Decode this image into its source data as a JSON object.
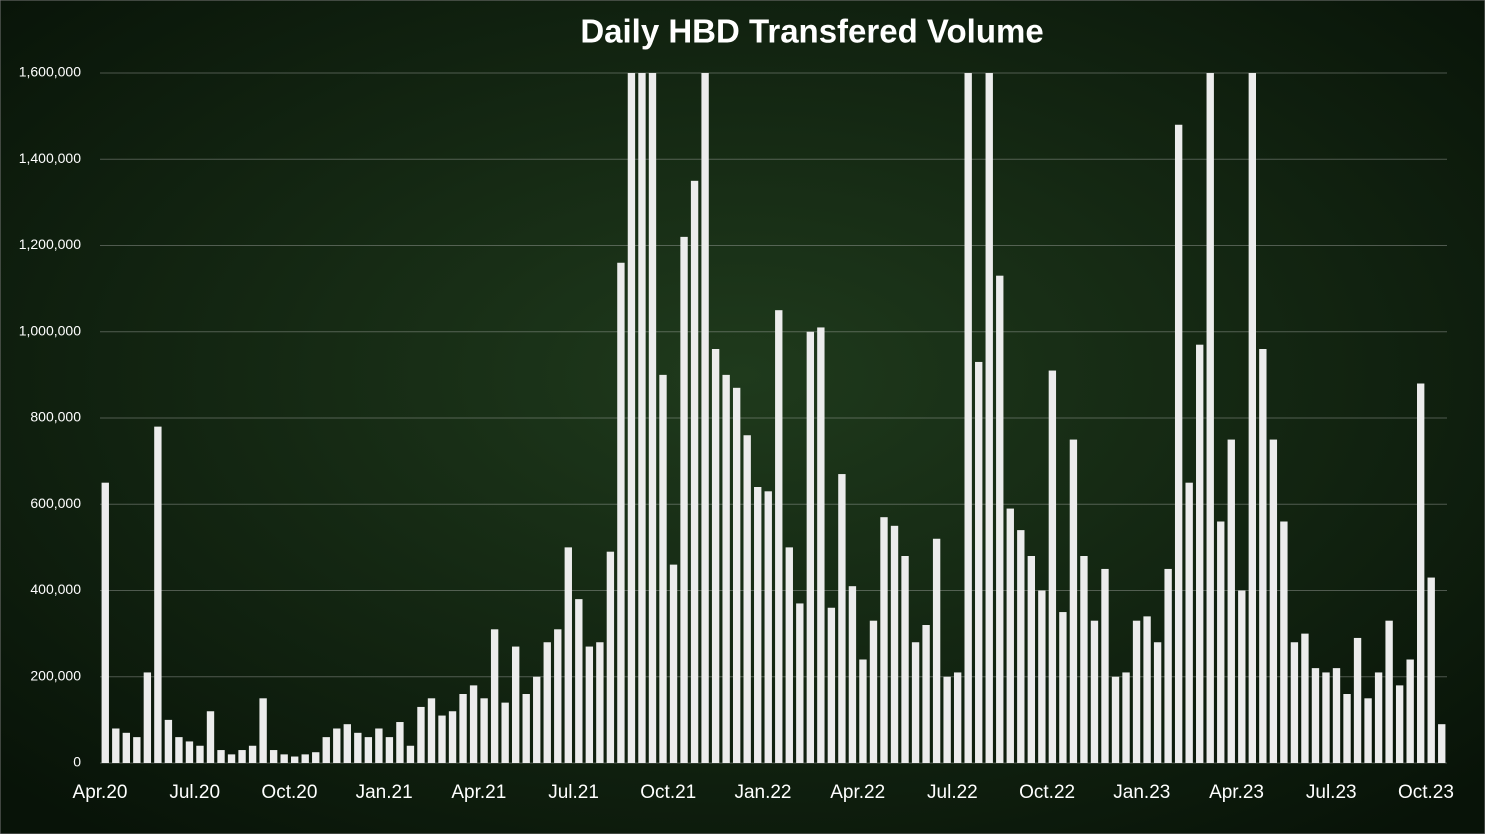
{
  "chart_data": {
    "type": "bar",
    "title": "Daily HBD Transfered Volume",
    "color": "#ececec",
    "grid": true,
    "categories": [
      "Apr.20",
      null,
      null,
      null,
      null,
      null,
      null,
      null,
      null,
      "Jul.20",
      null,
      null,
      null,
      null,
      null,
      null,
      null,
      null,
      "Oct.20",
      null,
      null,
      null,
      null,
      null,
      null,
      null,
      null,
      "Jan.21",
      null,
      null,
      null,
      null,
      null,
      null,
      null,
      null,
      "Apr.21",
      null,
      null,
      null,
      null,
      null,
      null,
      null,
      null,
      "Jul.21",
      null,
      null,
      null,
      null,
      null,
      null,
      null,
      null,
      "Oct.21",
      null,
      null,
      null,
      null,
      null,
      null,
      null,
      null,
      "Jan.22",
      null,
      null,
      null,
      null,
      null,
      null,
      null,
      null,
      "Apr.22",
      null,
      null,
      null,
      null,
      null,
      null,
      null,
      null,
      "Jul.22",
      null,
      null,
      null,
      null,
      null,
      null,
      null,
      null,
      "Oct.22",
      null,
      null,
      null,
      null,
      null,
      null,
      null,
      null,
      "Jan.23",
      null,
      null,
      null,
      null,
      null,
      null,
      null,
      null,
      "Apr.23",
      null,
      null,
      null,
      null,
      null,
      null,
      null,
      null,
      "Jul.23",
      null,
      null,
      null,
      null,
      null,
      null,
      null,
      null,
      "Oct.23",
      null
    ],
    "values": [
      650000,
      80000,
      70000,
      60000,
      210000,
      780000,
      100000,
      60000,
      50000,
      40000,
      120000,
      30000,
      20000,
      30000,
      40000,
      150000,
      30000,
      20000,
      15000,
      20000,
      25000,
      60000,
      80000,
      90000,
      70000,
      60000,
      80000,
      60000,
      95000,
      40000,
      130000,
      150000,
      110000,
      120000,
      160000,
      180000,
      150000,
      310000,
      140000,
      270000,
      160000,
      200000,
      280000,
      310000,
      500000,
      380000,
      270000,
      280000,
      490000,
      1160000,
      1600000,
      1600000,
      1600000,
      900000,
      460000,
      1220000,
      1350000,
      1600000,
      960000,
      900000,
      870000,
      760000,
      640000,
      630000,
      1050000,
      500000,
      370000,
      1000000,
      1010000,
      360000,
      670000,
      410000,
      240000,
      330000,
      570000,
      550000,
      480000,
      280000,
      320000,
      520000,
      200000,
      210000,
      1600000,
      930000,
      1600000,
      1130000,
      590000,
      540000,
      480000,
      400000,
      910000,
      350000,
      750000,
      480000,
      330000,
      450000,
      200000,
      210000,
      330000,
      340000,
      280000,
      450000,
      1480000,
      650000,
      970000,
      1600000,
      560000,
      750000,
      400000,
      1600000,
      960000,
      750000,
      560000,
      280000,
      300000,
      220000,
      210000,
      220000,
      160000,
      290000,
      150000,
      210000,
      330000,
      180000,
      240000,
      880000,
      430000,
      90000
    ],
    "ylim": [
      0,
      1600000
    ],
    "yticks": [
      0,
      {
        "value": 200000,
        "label": "200,000"
      },
      {
        "value": 400000,
        "label": "400,000"
      },
      {
        "value": 600000,
        "label": "600,000"
      },
      {
        "value": 800000,
        "label": "800,000"
      },
      {
        "value": 1000000,
        "label": "1,000,000"
      },
      {
        "value": 1200000,
        "label": "1,200,000"
      },
      {
        "value": 1400000,
        "label": "1,400,000"
      },
      {
        "value": 1600000,
        "label": "1,600,000"
      }
    ]
  }
}
